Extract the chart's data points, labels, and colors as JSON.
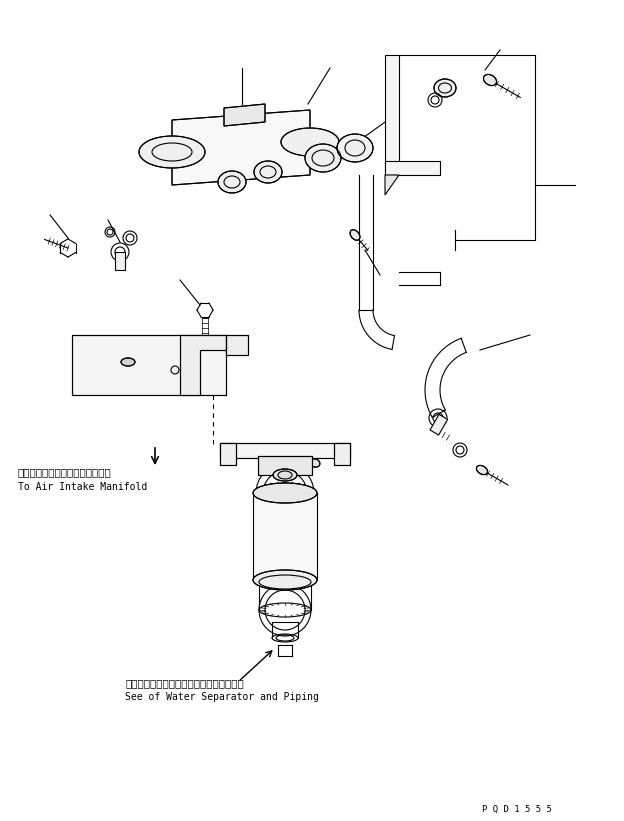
{
  "bg_color": "#ffffff",
  "line_color": "#000000",
  "text_color": "#000000",
  "fig_width": 6.24,
  "fig_height": 8.21,
  "dpi": 100,
  "label1_jp": "エアーインテークマニホールドヘ",
  "label1_en": "To Air Intake Manifold",
  "label2_jp": "ウォータセパレータおよびパイピング参照",
  "label2_en": "See of Water Separator and Piping",
  "part_code": "P Q D 1 5 5 5"
}
